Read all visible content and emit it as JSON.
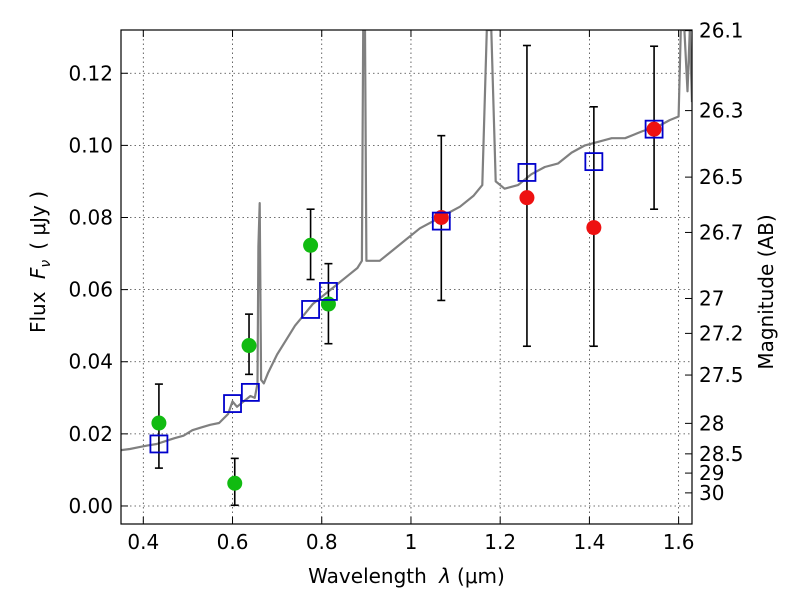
{
  "chart_data": {
    "type": "scatter",
    "title": "",
    "xlabel": "Wavelength  λ (μm)",
    "ylabel": "Flux  F_ν  ( μJy )",
    "ylabel_parts": {
      "prefix": "Flux ",
      "var": "F",
      "sub": "ν",
      "unit": "( μJy )"
    },
    "xlabel_parts": {
      "prefix": "Wavelength ",
      "var": "λ",
      "unit": "(μm)"
    },
    "y2label": "Magnitude (AB)",
    "xlim": [
      0.35,
      1.63
    ],
    "ylim": [
      -0.005,
      0.132
    ],
    "grid": true,
    "colors": {
      "spectrum": "#808080",
      "model_photometry": "#0000cc",
      "green_points": "#11bb11",
      "red_points": "#ee1111",
      "errorbars": "#000000"
    },
    "x_ticks": [
      {
        "value": 0.4,
        "label": "0.4"
      },
      {
        "value": 0.6,
        "label": "0.6"
      },
      {
        "value": 0.8,
        "label": "0.8"
      },
      {
        "value": 1.0,
        "label": "1"
      },
      {
        "value": 1.2,
        "label": "1.2"
      },
      {
        "value": 1.4,
        "label": "1.4"
      },
      {
        "value": 1.6,
        "label": "1.6"
      }
    ],
    "y_ticks": [
      {
        "value": 0.0,
        "label": "0.00"
      },
      {
        "value": 0.02,
        "label": "0.02"
      },
      {
        "value": 0.04,
        "label": "0.04"
      },
      {
        "value": 0.06,
        "label": "0.06"
      },
      {
        "value": 0.08,
        "label": "0.08"
      },
      {
        "value": 0.1,
        "label": "0.10"
      },
      {
        "value": 0.12,
        "label": "0.12"
      }
    ],
    "y2_ticks": [
      {
        "mag": 26.1,
        "label": "26.1"
      },
      {
        "mag": 26.3,
        "label": "26.3"
      },
      {
        "mag": 26.5,
        "label": "26.5"
      },
      {
        "mag": 26.7,
        "label": "26.7"
      },
      {
        "mag": 27.0,
        "label": "27"
      },
      {
        "mag": 27.2,
        "label": "27.2"
      },
      {
        "mag": 27.5,
        "label": "27.5"
      },
      {
        "mag": 28.0,
        "label": "28"
      },
      {
        "mag": 28.5,
        "label": "28.5"
      },
      {
        "mag": 29.0,
        "label": "29"
      },
      {
        "mag": 30.0,
        "label": "30"
      }
    ],
    "spectrum": [
      [
        0.35,
        0.0155
      ],
      [
        0.37,
        0.0158
      ],
      [
        0.39,
        0.0163
      ],
      [
        0.41,
        0.0168
      ],
      [
        0.43,
        0.0172
      ],
      [
        0.45,
        0.018
      ],
      [
        0.47,
        0.0188
      ],
      [
        0.49,
        0.0195
      ],
      [
        0.51,
        0.021
      ],
      [
        0.53,
        0.0218
      ],
      [
        0.55,
        0.0225
      ],
      [
        0.57,
        0.023
      ],
      [
        0.59,
        0.0255
      ],
      [
        0.6,
        0.029
      ],
      [
        0.61,
        0.0275
      ],
      [
        0.62,
        0.0285
      ],
      [
        0.63,
        0.0295
      ],
      [
        0.64,
        0.0305
      ],
      [
        0.65,
        0.03
      ],
      [
        0.656,
        0.034
      ],
      [
        0.658,
        0.072
      ],
      [
        0.661,
        0.084
      ],
      [
        0.664,
        0.035
      ],
      [
        0.67,
        0.034
      ],
      [
        0.68,
        0.037
      ],
      [
        0.7,
        0.042
      ],
      [
        0.72,
        0.046
      ],
      [
        0.74,
        0.05
      ],
      [
        0.76,
        0.053
      ],
      [
        0.78,
        0.056
      ],
      [
        0.8,
        0.058
      ],
      [
        0.82,
        0.06
      ],
      [
        0.84,
        0.062
      ],
      [
        0.86,
        0.064
      ],
      [
        0.88,
        0.066
      ],
      [
        0.89,
        0.068
      ],
      [
        0.893,
        0.132
      ],
      [
        0.897,
        0.132
      ],
      [
        0.9,
        0.068
      ],
      [
        0.93,
        0.068
      ],
      [
        0.96,
        0.071
      ],
      [
        0.99,
        0.074
      ],
      [
        1.02,
        0.077
      ],
      [
        1.05,
        0.079
      ],
      [
        1.08,
        0.081
      ],
      [
        1.11,
        0.083
      ],
      [
        1.14,
        0.086
      ],
      [
        1.16,
        0.089
      ],
      [
        1.17,
        0.132
      ],
      [
        1.18,
        0.132
      ],
      [
        1.19,
        0.09
      ],
      [
        1.21,
        0.088
      ],
      [
        1.24,
        0.089
      ],
      [
        1.27,
        0.092
      ],
      [
        1.3,
        0.094
      ],
      [
        1.33,
        0.095
      ],
      [
        1.36,
        0.098
      ],
      [
        1.39,
        0.1
      ],
      [
        1.42,
        0.101
      ],
      [
        1.45,
        0.102
      ],
      [
        1.48,
        0.102
      ],
      [
        1.5,
        0.103
      ],
      [
        1.52,
        0.104
      ],
      [
        1.55,
        0.105
      ],
      [
        1.58,
        0.107
      ],
      [
        1.6,
        0.108
      ],
      [
        1.605,
        0.132
      ],
      [
        1.613,
        0.132
      ],
      [
        1.62,
        0.115
      ],
      [
        1.625,
        0.132
      ],
      [
        1.63,
        0.112
      ]
    ],
    "model_photometry": [
      {
        "x": 0.435,
        "y": 0.0172
      },
      {
        "x": 0.6,
        "y": 0.0284
      },
      {
        "x": 0.64,
        "y": 0.0315
      },
      {
        "x": 0.775,
        "y": 0.0545
      },
      {
        "x": 0.815,
        "y": 0.0595
      },
      {
        "x": 1.068,
        "y": 0.079
      },
      {
        "x": 1.26,
        "y": 0.0925
      },
      {
        "x": 1.41,
        "y": 0.0955
      },
      {
        "x": 1.545,
        "y": 0.1045
      }
    ],
    "green_points": [
      {
        "x": 0.435,
        "y": 0.023,
        "yerr_low": 0.0105,
        "yerr_high": 0.0338
      },
      {
        "x": 0.605,
        "y": 0.0063,
        "yerr_low": 0.0002,
        "yerr_high": 0.0132
      },
      {
        "x": 0.637,
        "y": 0.0445,
        "yerr_low": 0.0365,
        "yerr_high": 0.0532
      },
      {
        "x": 0.775,
        "y": 0.0723,
        "yerr_low": 0.0628,
        "yerr_high": 0.0823
      },
      {
        "x": 0.815,
        "y": 0.056,
        "yerr_low": 0.045,
        "yerr_high": 0.0672
      }
    ],
    "red_points": [
      {
        "x": 1.068,
        "y": 0.08,
        "yerr_low": 0.057,
        "yerr_high": 0.1027
      },
      {
        "x": 1.26,
        "y": 0.0855,
        "yerr_low": 0.0443,
        "yerr_high": 0.1277
      },
      {
        "x": 1.41,
        "y": 0.0772,
        "yerr_low": 0.0443,
        "yerr_high": 0.1107
      },
      {
        "x": 1.545,
        "y": 0.1045,
        "yerr_low": 0.0823,
        "yerr_high": 0.1275
      }
    ]
  }
}
